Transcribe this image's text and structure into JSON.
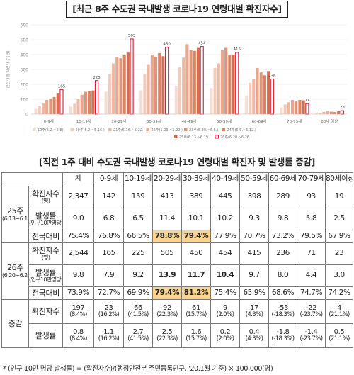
{
  "title": "[최근 8주 수도권 국내발생 코로나19 연령대별 확진자수]",
  "chart_data": {
    "type": "bar",
    "ylabel": "연령대별 확진자 수(명)",
    "ylim": [
      0,
      600
    ],
    "yticks": [
      0,
      100,
      200,
      300,
      400,
      500,
      600
    ],
    "categories": [
      "0-9세",
      "10-19세",
      "20-29세",
      "30-39세",
      "40-49세",
      "50-59세",
      "60-69세",
      "70-79세",
      "80세 이상"
    ],
    "series": [
      {
        "name": "19주(5.2.~5.8)",
        "values": [
          35,
          52,
          150,
          160,
          190,
          175,
          125,
          45,
          10
        ]
      },
      {
        "name": "20주(5.9.~5.15.)",
        "values": [
          55,
          70,
          270,
          270,
          315,
          310,
          210,
          65,
          10
        ]
      },
      {
        "name": "21주(5.16.~5.22.)",
        "values": [
          72,
          100,
          340,
          335,
          380,
          340,
          235,
          80,
          15
        ]
      },
      {
        "name": "22주(5.23.~5.29.)",
        "values": [
          95,
          130,
          385,
          400,
          470,
          430,
          310,
          95,
          18
        ]
      },
      {
        "name": "23주(5.30.~6.5.)",
        "values": [
          105,
          150,
          375,
          385,
          430,
          445,
          280,
          85,
          16
        ]
      },
      {
        "name": "24주(6.6.~6.12.)",
        "values": [
          115,
          155,
          395,
          410,
          425,
          400,
          260,
          95,
          14
        ]
      },
      {
        "name": "25주(6.13.~6.19.)",
        "values": [
          142,
          159,
          413,
          389,
          445,
          398,
          289,
          93,
          19
        ]
      },
      {
        "name": "26주(6.20.~6.26.)",
        "values": [
          165,
          225,
          505,
          450,
          454,
          415,
          236,
          71,
          23
        ]
      }
    ],
    "data_labels": [
      165,
      225,
      505,
      450,
      454,
      415,
      236,
      71,
      23
    ],
    "colors": [
      "#f6ddd3",
      "#f2cbbb",
      "#eeb9a3",
      "#e9a68c",
      "#e39476",
      "#dd8262",
      "#d56d4f",
      "#ffffff"
    ],
    "highlight_stroke": "#e3122e"
  },
  "table": {
    "title": "[직전 1주 대비 수도권 국내발생 코로나19 연령대별 확진자 및 발생률 증감]",
    "headers": [
      "계",
      "0-9세",
      "10-19세",
      "20-29세",
      "30-39세",
      "40-49세",
      "50-59세",
      "60-69세",
      "70-79세",
      "80세이상"
    ],
    "week25": {
      "label": "25주",
      "sub": "(6.13~6.19)",
      "cases_label": "확진자수",
      "cases_sub": "(명)",
      "rate_label": "발생률",
      "rate_sub": "(인구10만명당)",
      "nat_label": "전국대비",
      "cases": [
        "2,347",
        "142",
        "159",
        "413",
        "389",
        "445",
        "398",
        "289",
        "93",
        "19"
      ],
      "rate": [
        "9.0",
        "6.8",
        "6.5",
        "11.4",
        "10.1",
        "10.2",
        "9.3",
        "9.8",
        "5.8",
        "2.5"
      ],
      "nat": [
        "75.4%",
        "76.8%",
        "66.5%",
        "78.8%",
        "79.4%",
        "77.9%",
        "70.7%",
        "73.2%",
        "79.5%",
        "67.9%"
      ]
    },
    "week26": {
      "label": "26주",
      "sub": "(6.20~6.26)",
      "cases_label": "확진자수",
      "cases_sub": "(명)",
      "rate_label": "발생률",
      "rate_sub": "(인구10만명당)",
      "nat_label": "전국대비",
      "cases": [
        "2,544",
        "165",
        "225",
        "505",
        "450",
        "454",
        "415",
        "236",
        "71",
        "23"
      ],
      "rate": [
        "9.8",
        "7.9",
        "9.2",
        "13.9",
        "11.7",
        "10.4",
        "9.7",
        "8.0",
        "4.4",
        "3.0"
      ],
      "nat": [
        "73.9%",
        "72.7%",
        "69.9%",
        "79.4%",
        "81.2%",
        "75.4%",
        "65.9%",
        "68.6%",
        "74.7%",
        "74.2%"
      ]
    },
    "change": {
      "label": "증감",
      "cases_label": "확진자수",
      "rate_label": "발생률",
      "cases": [
        "197",
        "23",
        "66",
        "92",
        "61",
        "9",
        "17",
        "-53",
        "-22",
        "4"
      ],
      "cases_pct": [
        "(8.4%)",
        "(16.2%)",
        "(41.5%)",
        "(22.3%)",
        "(15.7%)",
        "(2.0%)",
        "(4.3%)",
        "(-18.3%)",
        "(-23.7%)",
        "(21.1%)"
      ],
      "rate": [
        "0.8",
        "1.1",
        "2.7",
        "2.5",
        "1.6",
        "0.2",
        "0.4",
        "-1.8",
        "-1.4",
        "0.5"
      ],
      "rate_pct": [
        "(8.4%)",
        "(16.2%)",
        "(41.5%)",
        "(22.3%)",
        "(15.7%)",
        "(2.0%)",
        "(4.3%)",
        "(-18.3%)",
        "(-23.7%)",
        "(21.1%)"
      ]
    }
  },
  "footnote": "* (인구 10만 명당 발생률) = (확진자수)/(행정안전부 주민등록인구, '20.1월 기준) × 100,000(명)"
}
